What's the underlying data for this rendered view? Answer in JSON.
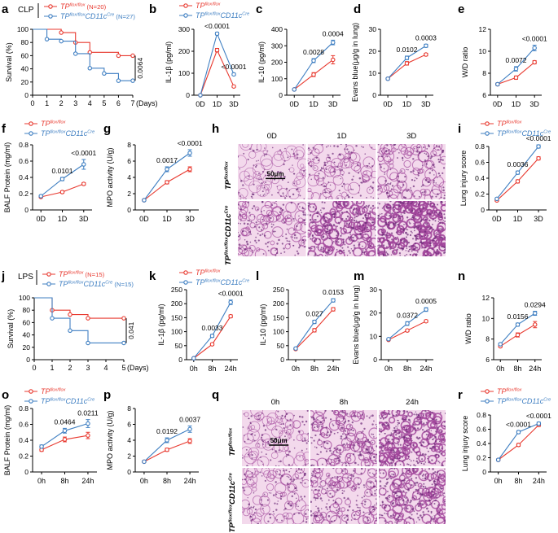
{
  "colors": {
    "ctrl": "#e8392f",
    "cko": "#3f7fc2",
    "he_bg": "#f3d9ec",
    "he_strong": "#a0449a"
  },
  "legend": {
    "ctrl_tp": "TP",
    "ctrl_sup": "flox/flox",
    "cko_tp": "TP",
    "cko_sup": "flox/flox",
    "cko_cd": "CD11c",
    "cko_cre": "Cre"
  },
  "scale_bar": "50μm",
  "panels": {
    "a": {
      "letter": "a",
      "tag": "CLP",
      "n_ctrl": "(N=20)",
      "n_cko": "(N=27)",
      "p": "0.0064"
    },
    "b": {
      "letter": "b"
    },
    "c": {
      "letter": "c"
    },
    "d": {
      "letter": "d"
    },
    "e": {
      "letter": "e"
    },
    "f": {
      "letter": "f"
    },
    "g": {
      "letter": "g"
    },
    "h": {
      "letter": "h",
      "cols": [
        "0D",
        "1D",
        "3D"
      ]
    },
    "i": {
      "letter": "i"
    },
    "j": {
      "letter": "j",
      "tag": "LPS",
      "n_ctrl": "(N=15)",
      "n_cko": "(N=15)",
      "p": "0.041"
    },
    "k": {
      "letter": "k"
    },
    "l": {
      "letter": "l"
    },
    "m": {
      "letter": "m"
    },
    "n": {
      "letter": "n"
    },
    "o": {
      "letter": "o"
    },
    "p": {
      "letter": "p"
    },
    "q": {
      "letter": "q",
      "cols": [
        "0h",
        "8h",
        "24h"
      ]
    },
    "r": {
      "letter": "r"
    }
  },
  "chart_data": [
    {
      "id": "a",
      "type": "line",
      "subtype": "survival",
      "ylabel": "Survival (%)",
      "xlabel": "(Days)",
      "xlim": [
        0,
        7
      ],
      "ylim": [
        0,
        100
      ],
      "xticks": [
        "0",
        "1",
        "2",
        "3",
        "4",
        "5",
        "6",
        "7"
      ],
      "yticks": [
        "0",
        "20",
        "40",
        "60",
        "80",
        "100"
      ],
      "series": [
        {
          "name": "TPflox/flox (N=20)",
          "color": "ctrl",
          "steps": [
            [
              0,
              100
            ],
            [
              2,
              100
            ],
            [
              2,
              95
            ],
            [
              3,
              95
            ],
            [
              3,
              80
            ],
            [
              4,
              80
            ],
            [
              4,
              65
            ],
            [
              6,
              65
            ],
            [
              6,
              60
            ],
            [
              7,
              60
            ]
          ]
        },
        {
          "name": "TPflox/floxCD11cCre (N=27)",
          "color": "cko",
          "steps": [
            [
              0,
              100
            ],
            [
              1,
              100
            ],
            [
              1,
              85
            ],
            [
              2,
              85
            ],
            [
              2,
              82
            ],
            [
              3,
              82
            ],
            [
              3,
              63
            ],
            [
              4,
              63
            ],
            [
              4,
              41
            ],
            [
              5,
              41
            ],
            [
              5,
              33
            ],
            [
              6,
              33
            ],
            [
              6,
              22
            ],
            [
              7,
              22
            ]
          ]
        }
      ],
      "annotations": [
        "0.0064"
      ]
    },
    {
      "id": "b",
      "type": "line",
      "ylabel": "IL-1β (pg/ml)",
      "categories": [
        "0D",
        "1D",
        "3D"
      ],
      "ylim": [
        0,
        300
      ],
      "yticks": [
        "0",
        "100",
        "200",
        "300"
      ],
      "series": [
        {
          "name": "TPflox/flox",
          "color": "ctrl",
          "values": [
            0,
            205,
            40
          ],
          "err": [
            0,
            8,
            4
          ]
        },
        {
          "name": "TPflox/floxCD11cCre",
          "color": "cko",
          "values": [
            0,
            280,
            95
          ],
          "err": [
            0,
            6,
            5
          ]
        }
      ],
      "annotations": [
        {
          "text": "<0.0001",
          "cat": 1
        },
        {
          "text": "<0.0001",
          "cat": 2
        }
      ]
    },
    {
      "id": "c",
      "type": "line",
      "ylabel": "IL-10 (pg/ml)",
      "categories": [
        "0D",
        "1D",
        "3D"
      ],
      "ylim": [
        0,
        400
      ],
      "yticks": [
        "0",
        "100",
        "200",
        "300",
        "400"
      ],
      "series": [
        {
          "name": "TPflox/flox",
          "color": "ctrl",
          "values": [
            35,
            125,
            215
          ],
          "err": [
            3,
            12,
            25
          ]
        },
        {
          "name": "TPflox/floxCD11cCre",
          "color": "cko",
          "values": [
            35,
            210,
            320
          ],
          "err": [
            3,
            12,
            14
          ]
        }
      ],
      "annotations": [
        {
          "text": "0.0028",
          "cat": 1
        },
        {
          "text": "0.0004",
          "cat": 2
        }
      ]
    },
    {
      "id": "d",
      "type": "line",
      "ylabel": "Evans blue(μg/g in lung)",
      "categories": [
        "0D",
        "1D",
        "3D"
      ],
      "ylim": [
        0,
        30
      ],
      "yticks": [
        "0",
        "10",
        "20",
        "30"
      ],
      "series": [
        {
          "name": "TPflox/flox",
          "color": "ctrl",
          "values": [
            7.5,
            14.5,
            18.5
          ],
          "err": [
            0.4,
            0.8,
            0.6
          ]
        },
        {
          "name": "TPflox/floxCD11cCre",
          "color": "cko",
          "values": [
            7.5,
            17.0,
            22.5
          ],
          "err": [
            0.4,
            0.8,
            0.7
          ]
        }
      ],
      "annotations": [
        {
          "text": "0.0102",
          "cat": 1
        },
        {
          "text": "0.0003",
          "cat": 2
        }
      ]
    },
    {
      "id": "e",
      "type": "line",
      "ylabel": "W/D ratio",
      "categories": [
        "0D",
        "1D",
        "3D"
      ],
      "ylim": [
        6,
        12
      ],
      "yticks": [
        "6",
        "8",
        "10",
        "12"
      ],
      "series": [
        {
          "name": "TPflox/flox",
          "color": "ctrl",
          "values": [
            7.0,
            7.6,
            9.0
          ],
          "err": [
            0.1,
            0.15,
            0.15
          ]
        },
        {
          "name": "TPflox/floxCD11cCre",
          "color": "cko",
          "values": [
            7.0,
            8.4,
            10.3
          ],
          "err": [
            0.1,
            0.2,
            0.25
          ]
        }
      ],
      "annotations": [
        {
          "text": "0.0072",
          "cat": 1
        },
        {
          "text": "<0.0001",
          "cat": 2
        }
      ]
    },
    {
      "id": "f",
      "type": "line",
      "ylabel": "BALF Protein (mg/ml)",
      "categories": [
        "0D",
        "1D",
        "3D"
      ],
      "ylim": [
        0,
        0.8
      ],
      "yticks": [
        "0",
        "0.2",
        "0.4",
        "0.6",
        "0.8"
      ],
      "series": [
        {
          "name": "TPflox/flox",
          "color": "ctrl",
          "values": [
            0.16,
            0.22,
            0.32
          ],
          "err": [
            0.01,
            0.015,
            0.015
          ]
        },
        {
          "name": "TPflox/floxCD11cCre",
          "color": "cko",
          "values": [
            0.17,
            0.38,
            0.56
          ],
          "err": [
            0.01,
            0.02,
            0.06
          ]
        }
      ],
      "annotations": [
        {
          "text": "0.0101",
          "cat": 1
        },
        {
          "text": "<0.0001",
          "cat": 2
        }
      ]
    },
    {
      "id": "g",
      "type": "line",
      "ylabel": "MPO activity (U/g)",
      "categories": [
        "0D",
        "1D",
        "3D"
      ],
      "ylim": [
        0,
        8
      ],
      "yticks": [
        "0",
        "2",
        "4",
        "6",
        "8"
      ],
      "series": [
        {
          "name": "TPflox/flox",
          "color": "ctrl",
          "values": [
            1.2,
            3.4,
            5.0
          ],
          "err": [
            0.1,
            0.2,
            0.3
          ]
        },
        {
          "name": "TPflox/floxCD11cCre",
          "color": "cko",
          "values": [
            1.2,
            5.0,
            7.0
          ],
          "err": [
            0.1,
            0.3,
            0.4
          ]
        }
      ],
      "annotations": [
        {
          "text": "0.0017",
          "cat": 1
        },
        {
          "text": "<0.0001",
          "cat": 2
        }
      ]
    },
    {
      "id": "i",
      "type": "line",
      "ylabel": "Lung injury score",
      "categories": [
        "0D",
        "1D",
        "3D"
      ],
      "ylim": [
        0,
        0.8
      ],
      "yticks": [
        "0",
        "0.2",
        "0.4",
        "0.6",
        "0.8"
      ],
      "series": [
        {
          "name": "TPflox/flox",
          "color": "ctrl",
          "values": [
            0.12,
            0.36,
            0.65
          ],
          "err": [
            0.01,
            0.02,
            0.02
          ]
        },
        {
          "name": "TPflox/floxCD11cCre",
          "color": "cko",
          "values": [
            0.14,
            0.47,
            0.8
          ],
          "err": [
            0.01,
            0.02,
            0.02
          ]
        }
      ],
      "annotations": [
        {
          "text": "0.0036",
          "cat": 1
        },
        {
          "text": "<0.0001",
          "cat": 2
        }
      ]
    },
    {
      "id": "j",
      "type": "line",
      "subtype": "survival",
      "ylabel": "Survival (%)",
      "xlabel": "(Days)",
      "xlim": [
        0,
        5
      ],
      "ylim": [
        0,
        100
      ],
      "xticks": [
        "0",
        "1",
        "2",
        "3",
        "4",
        "5"
      ],
      "yticks": [
        "0",
        "20",
        "40",
        "60",
        "80",
        "100"
      ],
      "series": [
        {
          "name": "TPflox/flox (N=15)",
          "color": "ctrl",
          "steps": [
            [
              0,
              100
            ],
            [
              1,
              100
            ],
            [
              1,
              80
            ],
            [
              2,
              80
            ],
            [
              2,
              73
            ],
            [
              3,
              73
            ],
            [
              3,
              67
            ],
            [
              5,
              67
            ]
          ]
        },
        {
          "name": "TPflox/floxCD11cCre (N=15)",
          "color": "cko",
          "steps": [
            [
              0,
              100
            ],
            [
              1,
              100
            ],
            [
              1,
              67
            ],
            [
              2,
              67
            ],
            [
              2,
              47
            ],
            [
              3,
              47
            ],
            [
              3,
              27
            ],
            [
              5,
              27
            ]
          ]
        }
      ],
      "annotations": [
        "0.041"
      ]
    },
    {
      "id": "k",
      "type": "line",
      "ylabel": "IL-1β (pg/ml)",
      "categories": [
        "0h",
        "8h",
        "24h"
      ],
      "ylim": [
        0,
        250
      ],
      "yticks": [
        "0",
        "50",
        "100",
        "150",
        "200",
        "250"
      ],
      "series": [
        {
          "name": "TPflox/flox",
          "color": "ctrl",
          "values": [
            5,
            55,
            155
          ],
          "err": [
            1,
            4,
            5
          ]
        },
        {
          "name": "TPflox/floxCD11cCre",
          "color": "cko",
          "values": [
            5,
            85,
            205
          ],
          "err": [
            1,
            5,
            8
          ]
        }
      ],
      "annotations": [
        {
          "text": "0.0033",
          "cat": 1
        },
        {
          "text": "<0.0001",
          "cat": 2
        }
      ]
    },
    {
      "id": "l",
      "type": "line",
      "ylabel": "IL-10 (pg/ml)",
      "categories": [
        "0h",
        "8h",
        "24h"
      ],
      "ylim": [
        0,
        250
      ],
      "yticks": [
        "0",
        "50",
        "100",
        "150",
        "200",
        "250"
      ],
      "series": [
        {
          "name": "TPflox/flox",
          "color": "ctrl",
          "values": [
            38,
            105,
            180
          ],
          "err": [
            3,
            6,
            6
          ]
        },
        {
          "name": "TPflox/floxCD11cCre",
          "color": "cko",
          "values": [
            40,
            135,
            212
          ],
          "err": [
            3,
            6,
            6
          ]
        }
      ],
      "annotations": [
        {
          "text": "0.027",
          "cat": 1
        },
        {
          "text": "0.0153",
          "cat": 2
        }
      ]
    },
    {
      "id": "m",
      "type": "line",
      "ylabel": "Evans blue(μg/g in lung)",
      "categories": [
        "0h",
        "8h",
        "24h"
      ],
      "ylim": [
        0,
        30
      ],
      "yticks": [
        "0",
        "10",
        "20",
        "30"
      ],
      "series": [
        {
          "name": "TPflox/flox",
          "color": "ctrl",
          "values": [
            8.5,
            12.5,
            16.5
          ],
          "err": [
            0.3,
            0.5,
            0.5
          ]
        },
        {
          "name": "TPflox/floxCD11cCre",
          "color": "cko",
          "values": [
            8.8,
            15.5,
            21.5
          ],
          "err": [
            0.3,
            0.8,
            0.8
          ]
        }
      ],
      "annotations": [
        {
          "text": "0.0372",
          "cat": 1
        },
        {
          "text": "0.0005",
          "cat": 2
        }
      ]
    },
    {
      "id": "n",
      "type": "line",
      "ylabel": "W/D ratio",
      "categories": [
        "0h",
        "8h",
        "24h"
      ],
      "ylim": [
        6,
        12
      ],
      "yticks": [
        "6",
        "8",
        "10",
        "12"
      ],
      "series": [
        {
          "name": "TPflox/flox",
          "color": "ctrl",
          "values": [
            7.3,
            8.4,
            9.4
          ],
          "err": [
            0.1,
            0.2,
            0.3
          ]
        },
        {
          "name": "TPflox/floxCD11cCre",
          "color": "cko",
          "values": [
            7.5,
            9.4,
            10.5
          ],
          "err": [
            0.1,
            0.15,
            0.2
          ]
        }
      ],
      "annotations": [
        {
          "text": "0.0156",
          "cat": 1
        },
        {
          "text": "0.0294",
          "cat": 2
        }
      ]
    },
    {
      "id": "o",
      "type": "line",
      "ylabel": "BALF Protein (mg/ml)",
      "categories": [
        "0h",
        "8h",
        "24h"
      ],
      "ylim": [
        0,
        0.8
      ],
      "yticks": [
        "0",
        "0.2",
        "0.4",
        "0.6",
        "0.8"
      ],
      "series": [
        {
          "name": "TPflox/flox",
          "color": "ctrl",
          "values": [
            0.28,
            0.41,
            0.46
          ],
          "err": [
            0.02,
            0.03,
            0.04
          ]
        },
        {
          "name": "TPflox/floxCD11cCre",
          "color": "cko",
          "values": [
            0.32,
            0.52,
            0.61
          ],
          "err": [
            0.02,
            0.03,
            0.05
          ]
        }
      ],
      "annotations": [
        {
          "text": "0.0464",
          "cat": 1
        },
        {
          "text": "0.0211",
          "cat": 2
        }
      ]
    },
    {
      "id": "p",
      "type": "line",
      "ylabel": "MPO activity (U/g)",
      "categories": [
        "0h",
        "8h",
        "24h"
      ],
      "ylim": [
        0,
        8
      ],
      "yticks": [
        "0",
        "2",
        "4",
        "6",
        "8"
      ],
      "series": [
        {
          "name": "TPflox/flox",
          "color": "ctrl",
          "values": [
            1.3,
            2.8,
            3.9
          ],
          "err": [
            0.1,
            0.2,
            0.3
          ]
        },
        {
          "name": "TPflox/floxCD11cCre",
          "color": "cko",
          "values": [
            1.3,
            4.0,
            5.4
          ],
          "err": [
            0.1,
            0.3,
            0.4
          ]
        }
      ],
      "annotations": [
        {
          "text": "0.0192",
          "cat": 1
        },
        {
          "text": "0.0037",
          "cat": 2
        }
      ]
    },
    {
      "id": "r",
      "type": "line",
      "ylabel": "Lung injury score",
      "categories": [
        "0h",
        "8h",
        "24h"
      ],
      "ylim": [
        0,
        0.8
      ],
      "yticks": [
        "0",
        "0.2",
        "0.4",
        "0.6",
        "0.8"
      ],
      "series": [
        {
          "name": "TPflox/flox",
          "color": "ctrl",
          "values": [
            0.17,
            0.38,
            0.66
          ],
          "err": [
            0.01,
            0.02,
            0.02
          ]
        },
        {
          "name": "TPflox/floxCD11cCre",
          "color": "cko",
          "values": [
            0.17,
            0.56,
            0.68
          ],
          "err": [
            0.01,
            0.02,
            0.02
          ]
        }
      ],
      "annotations": [
        {
          "text": "<0.0001",
          "cat": 1
        },
        {
          "text": "<0.0001",
          "cat": 2
        }
      ]
    }
  ]
}
